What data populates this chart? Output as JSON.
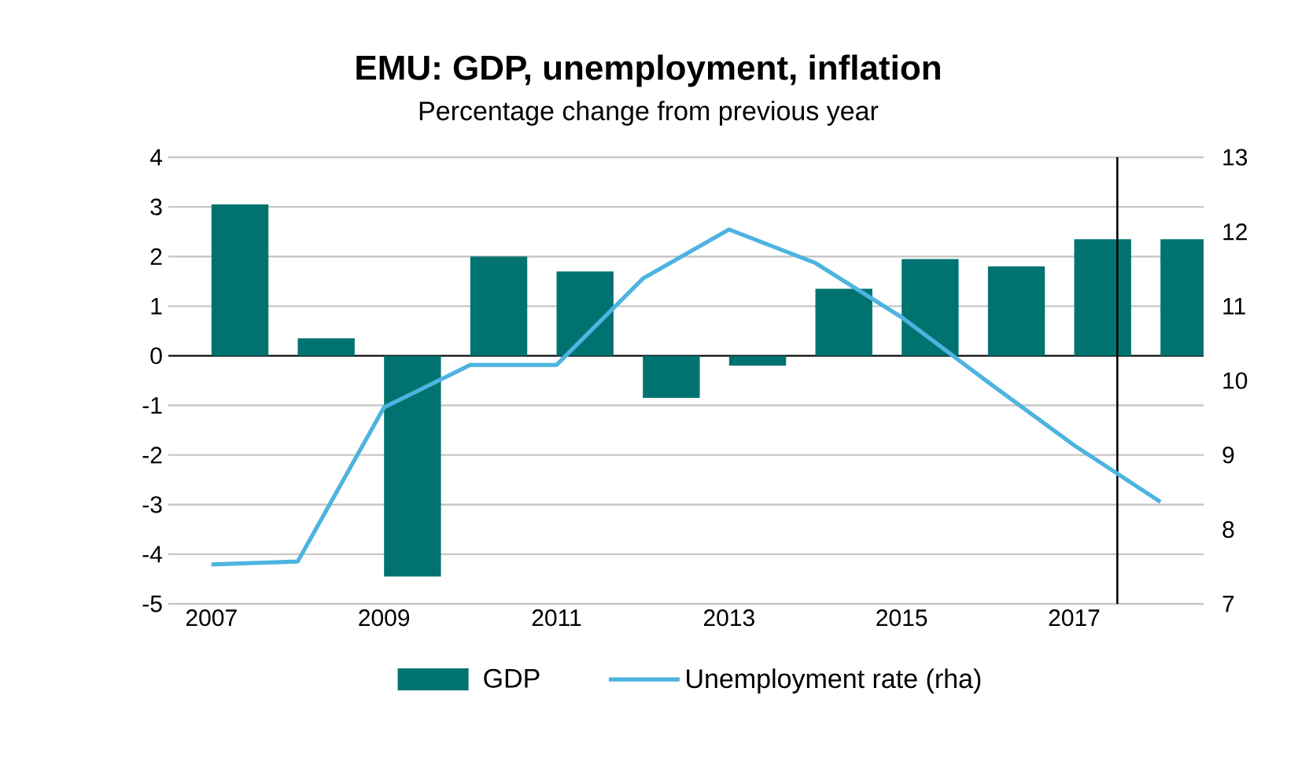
{
  "chart_data": {
    "type": "bar",
    "title": "EMU:  GDP, unemployment, inflation",
    "subtitle": "Percentage change from previous year",
    "categories": [
      "2007",
      null,
      "2009",
      null,
      "2011",
      null,
      "2013",
      null,
      "2015",
      null,
      "2017",
      null
    ],
    "series": [
      {
        "name": "GDP",
        "color": "#007370",
        "values": [
          3.05,
          0.35,
          -4.45,
          2.0,
          1.7,
          -0.85,
          -0.2,
          1.35,
          1.95,
          1.8,
          2.35,
          2.35
        ]
      },
      {
        "name": "Unemployment rate (rha)",
        "type": "line",
        "axis": "y2",
        "color": "#4db3e0",
        "values": [
          7.53,
          7.57,
          9.64,
          10.21,
          10.21,
          11.37,
          12.03,
          11.58,
          10.85,
          9.98,
          9.13,
          8.37
        ]
      }
    ],
    "ylim": [
      -5,
      4
    ],
    "yticks": [
      -5,
      -4,
      -3,
      -2,
      -1,
      0,
      1,
      2,
      3,
      4
    ],
    "y2lim": [
      7,
      13
    ],
    "y2ticks": [
      7,
      8,
      9,
      10,
      11,
      12,
      13
    ],
    "grid": "y",
    "legend": "bottom",
    "marker": "none",
    "line_style": "solid"
  }
}
